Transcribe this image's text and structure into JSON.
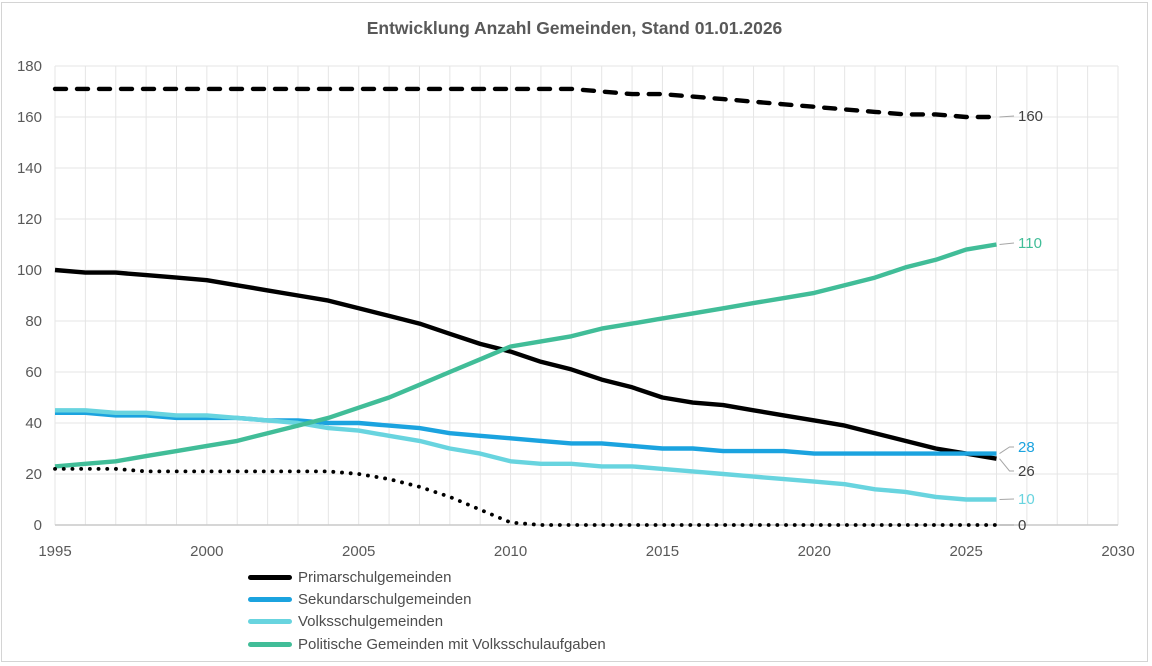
{
  "chart_data": {
    "type": "line",
    "title": "Entwicklung Anzahl Gemeinden, Stand 01.01.2026",
    "x_ticks": [
      "1995",
      "2000",
      "2005",
      "2010",
      "2015",
      "2020",
      "2025",
      "2030"
    ],
    "y_ticks": [
      "0",
      "20",
      "40",
      "60",
      "80",
      "100",
      "120",
      "140",
      "160",
      "180"
    ],
    "x_range": [
      1995,
      2030
    ],
    "y_range": [
      0,
      180
    ],
    "grid": "on (vertical minor gridlines every year, horizontal every 20)",
    "legend_position": "bottom-left",
    "years": [
      1995,
      1996,
      1997,
      1998,
      1999,
      2000,
      2001,
      2002,
      2003,
      2004,
      2005,
      2006,
      2007,
      2008,
      2009,
      2010,
      2011,
      2012,
      2013,
      2014,
      2015,
      2016,
      2017,
      2018,
      2019,
      2020,
      2021,
      2022,
      2023,
      2024,
      2025,
      2026
    ],
    "series": [
      {
        "id": "dashed-black",
        "name": "",
        "in_legend": false,
        "style": "dashed",
        "color": "#000000",
        "end_label": "160",
        "end_label_color": "#404040",
        "values": [
          171,
          171,
          171,
          171,
          171,
          171,
          171,
          171,
          171,
          171,
          171,
          171,
          171,
          171,
          171,
          171,
          171,
          171,
          170,
          169,
          169,
          168,
          167,
          166,
          165,
          164,
          163,
          162,
          161,
          161,
          160,
          160
        ]
      },
      {
        "id": "primarschulgemeinden",
        "name": "Primarschulgemeinden",
        "in_legend": true,
        "style": "solid",
        "color": "#000000",
        "end_label": "26",
        "end_label_color": "#404040",
        "values": [
          100,
          99,
          99,
          98,
          97,
          96,
          94,
          92,
          90,
          88,
          85,
          82,
          79,
          75,
          71,
          68,
          64,
          61,
          57,
          54,
          50,
          48,
          47,
          45,
          43,
          41,
          39,
          36,
          33,
          30,
          28,
          26
        ]
      },
      {
        "id": "sekundarschulgemeinden",
        "name": "Sekundarschulgemeinden",
        "in_legend": true,
        "style": "solid",
        "color": "#1BA3DF",
        "end_label": "28",
        "end_label_color": "#1BA3DF",
        "values": [
          44,
          44,
          43,
          43,
          42,
          42,
          42,
          41,
          41,
          40,
          40,
          39,
          38,
          36,
          35,
          34,
          33,
          32,
          32,
          31,
          30,
          30,
          29,
          29,
          29,
          28,
          28,
          28,
          28,
          28,
          28,
          28
        ]
      },
      {
        "id": "volksschulgemeinden",
        "name": "Volksschulgemeinden",
        "in_legend": true,
        "style": "solid",
        "color": "#68D4DF",
        "end_label": "10",
        "end_label_color": "#68D4DF",
        "values": [
          45,
          45,
          44,
          44,
          43,
          43,
          42,
          41,
          40,
          38,
          37,
          35,
          33,
          30,
          28,
          25,
          24,
          24,
          23,
          23,
          22,
          21,
          20,
          19,
          18,
          17,
          16,
          14,
          13,
          11,
          10,
          10
        ]
      },
      {
        "id": "politische-gemeinden-mit-volksschulaufgaben",
        "name": "Politische Gemeinden mit Volksschulaufgaben",
        "in_legend": true,
        "style": "solid",
        "color": "#41BD98",
        "end_label": "110",
        "end_label_color": "#41BD98",
        "values": [
          23,
          24,
          25,
          27,
          29,
          31,
          33,
          36,
          39,
          42,
          46,
          50,
          55,
          60,
          65,
          70,
          72,
          74,
          77,
          79,
          81,
          83,
          85,
          87,
          89,
          91,
          94,
          97,
          101,
          104,
          108,
          110
        ]
      },
      {
        "id": "dotted-black",
        "name": "",
        "in_legend": false,
        "style": "dotted",
        "color": "#000000",
        "end_label": "0",
        "end_label_color": "#404040",
        "values": [
          22,
          22,
          22,
          21,
          21,
          21,
          21,
          21,
          21,
          21,
          20,
          18,
          15,
          11,
          6,
          1,
          0,
          0,
          0,
          0,
          0,
          0,
          0,
          0,
          0,
          0,
          0,
          0,
          0,
          0,
          0,
          0
        ]
      }
    ]
  }
}
